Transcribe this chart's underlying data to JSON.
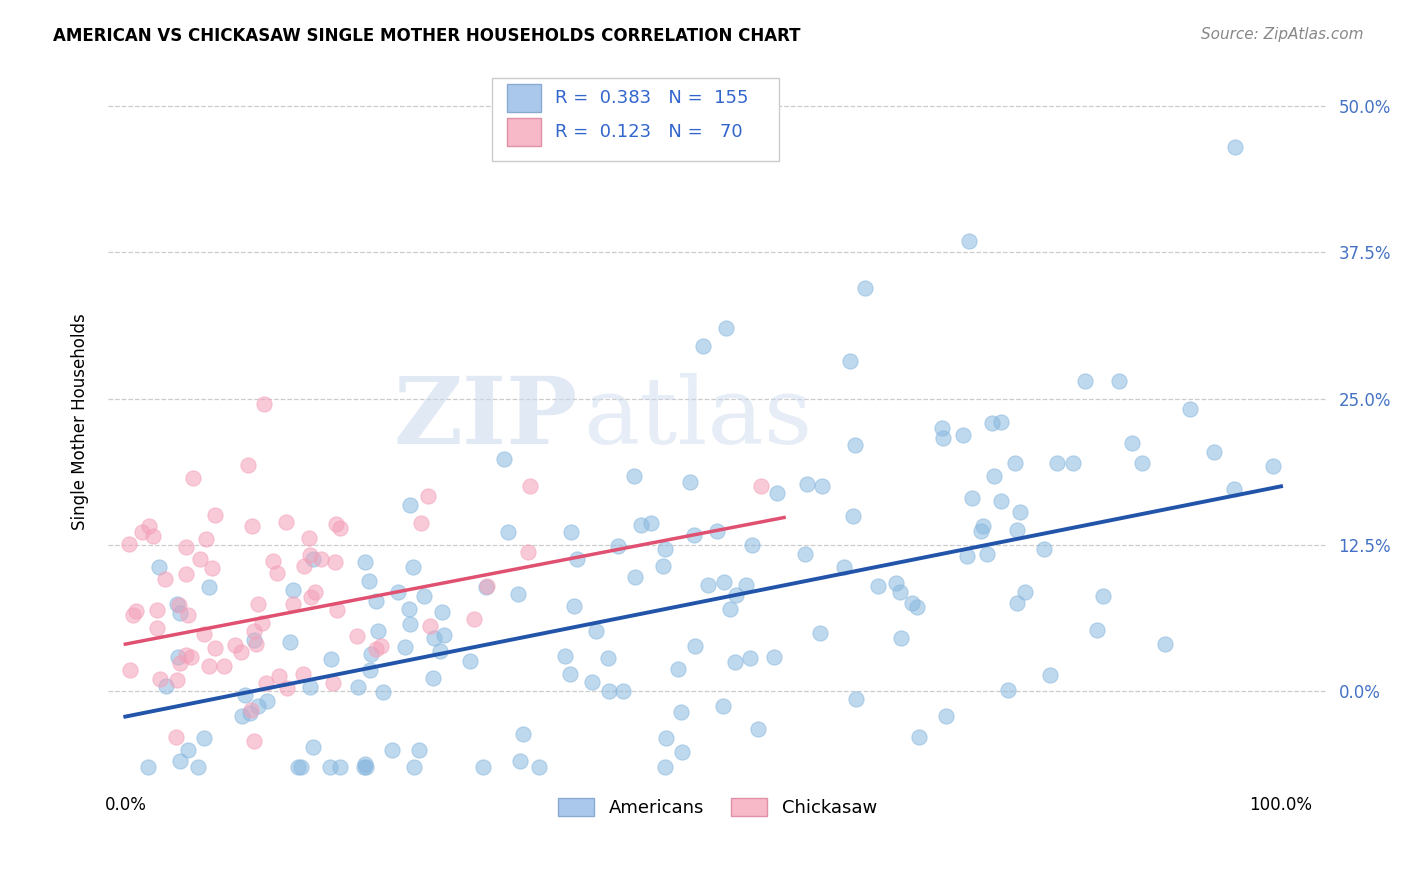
{
  "title": "AMERICAN VS CHICKASAW SINGLE MOTHER HOUSEHOLDS CORRELATION CHART",
  "source": "Source: ZipAtlas.com",
  "ylabel": "Single Mother Households",
  "ytick_labels": [
    "0.0%",
    "12.5%",
    "25.0%",
    "37.5%",
    "50.0%"
  ],
  "ytick_values": [
    0.0,
    0.125,
    0.25,
    0.375,
    0.5
  ],
  "legend_bottom": [
    "Americans",
    "Chickasaw"
  ],
  "watermark_zip": "ZIP",
  "watermark_atlas": "atlas",
  "americans_color": "#89b8df",
  "chickasaw_color": "#f4a0b8",
  "trend_americans_color": "#2255aa",
  "trend_chickasaw_color": "#e05070",
  "background_color": "#ffffff",
  "grid_color": "#cccccc",
  "americans_R": 0.383,
  "americans_N": 155,
  "chickasaw_R": 0.123,
  "chickasaw_N": 70,
  "xlim": [
    -0.015,
    1.04
  ],
  "ylim": [
    -0.08,
    0.54
  ],
  "legend_blue_color": "#aac8ec",
  "legend_pink_color": "#f7b8c8",
  "title_fontsize": 12,
  "source_fontsize": 11,
  "tick_fontsize": 12,
  "ylabel_fontsize": 12
}
